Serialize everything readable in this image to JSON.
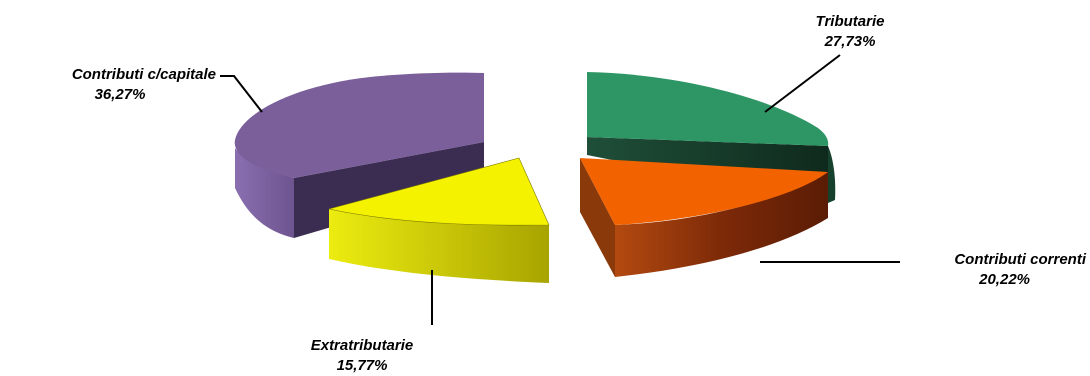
{
  "chart_data": {
    "type": "pie",
    "style": "3d-exploded",
    "title": "",
    "slices": [
      {
        "label": "Tributarie",
        "value_label": "27,73%",
        "value": 27.73,
        "color": "#2e9665",
        "dark": "#1a5038"
      },
      {
        "label": "Contributi correnti",
        "value_label": "20,22%",
        "value": 20.22,
        "color": "#f26300",
        "dark": "#7a2e06"
      },
      {
        "label": "Extratributarie",
        "value_label": "15,77%",
        "value": 15.77,
        "color": "#f5f200",
        "dark": "#a8a400"
      },
      {
        "label": "Contributi c/capitale",
        "value_label": "36,27%",
        "value": 36.27,
        "color": "#7a5f9b",
        "dark": "#3b2c52"
      }
    ]
  }
}
